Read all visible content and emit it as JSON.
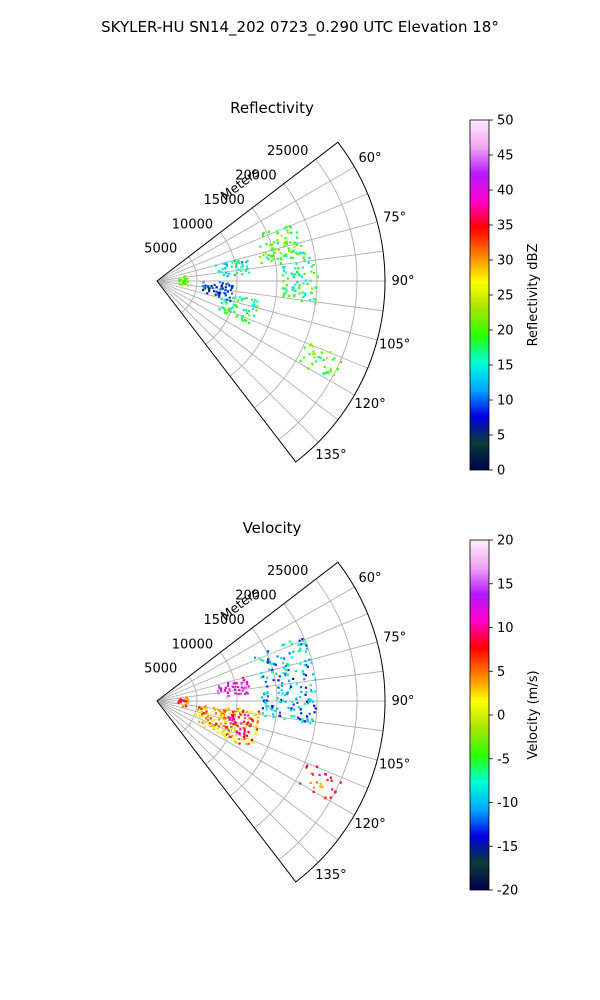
{
  "title": "SKYLER-HU  SN14_202  0723_0.290 UTC Elevation 18°",
  "chart_data": [
    {
      "type": "polar-sector",
      "title": "Reflectivity",
      "radial_label": "Meters",
      "range_ticks": [
        "5000",
        "10000",
        "15000",
        "20000",
        "25000"
      ],
      "azimuth_ticks": [
        "60°",
        "75°",
        "90°",
        "105°",
        "120°",
        "135°"
      ],
      "azimuth_range_deg": [
        52.5,
        142.5
      ],
      "range_max_m": 28500,
      "colorbar": {
        "label": "Reflectivity dBZ",
        "min": 0,
        "max": 50,
        "ticks": [
          "0",
          "5",
          "10",
          "15",
          "20",
          "25",
          "30",
          "35",
          "40",
          "45",
          "50"
        ],
        "stops": [
          "#00004d",
          "#0a3b35",
          "#0000e6",
          "#00aaff",
          "#00ffd5",
          "#2cff00",
          "#a6e600",
          "#ffff00",
          "#ff7f00",
          "#ff0000",
          "#ff00cc",
          "#b31aff",
          "#f2a6f2",
          "#ffeaff"
        ]
      },
      "echo_regions": [
        {
          "az": [
            65,
            80
          ],
          "range_m": [
            13000,
            18500
          ],
          "value": 20
        },
        {
          "az": [
            78,
            98
          ],
          "range_m": [
            15500,
            20000
          ],
          "value": 17
        },
        {
          "az": [
            74,
            86
          ],
          "range_m": [
            7500,
            12000
          ],
          "value": 15
        },
        {
          "az": [
            90,
            105
          ],
          "range_m": [
            5500,
            9500
          ],
          "value": 8
        },
        {
          "az": [
            100,
            115
          ],
          "range_m": [
            8000,
            13000
          ],
          "value": 18
        },
        {
          "az": [
            112,
            120
          ],
          "range_m": [
            20000,
            25000
          ],
          "value": 20
        },
        {
          "az": [
            78,
            98
          ],
          "range_m": [
            2500,
            3800
          ],
          "value": 21
        }
      ]
    },
    {
      "type": "polar-sector",
      "title": "Velocity",
      "radial_label": "Meters",
      "range_ticks": [
        "5000",
        "10000",
        "15000",
        "20000",
        "25000"
      ],
      "azimuth_ticks": [
        "60°",
        "75°",
        "90°",
        "105°",
        "120°",
        "135°"
      ],
      "azimuth_range_deg": [
        52.5,
        142.5
      ],
      "range_max_m": 28500,
      "colorbar": {
        "label": "Velocity (m/s)",
        "min": -20,
        "max": 20,
        "ticks": [
          "-20",
          "-15",
          "-10",
          "-5",
          "0",
          "5",
          "10",
          "15",
          "20"
        ],
        "stops": [
          "#00004d",
          "#0a3b35",
          "#0000e6",
          "#00aaff",
          "#00ffd5",
          "#2cff00",
          "#a6e600",
          "#ffff00",
          "#ff7f00",
          "#ff0000",
          "#ff00cc",
          "#b31aff",
          "#f2a6f2",
          "#ffeaff"
        ]
      },
      "echo_regions": [
        {
          "az": [
            65,
            98
          ],
          "range_m": [
            13000,
            20000
          ],
          "value": -10
        },
        {
          "az": [
            74,
            86
          ],
          "range_m": [
            7500,
            11500
          ],
          "value": 13
        },
        {
          "az": [
            95,
            118
          ],
          "range_m": [
            5000,
            13000
          ],
          "value": 4
        },
        {
          "az": [
            98,
            112
          ],
          "range_m": [
            9000,
            12000
          ],
          "value": 9
        },
        {
          "az": [
            112,
            120
          ],
          "range_m": [
            20000,
            25000
          ],
          "value": 7
        },
        {
          "az": [
            80,
            100
          ],
          "range_m": [
            2500,
            3800
          ],
          "value": 6
        }
      ]
    }
  ]
}
